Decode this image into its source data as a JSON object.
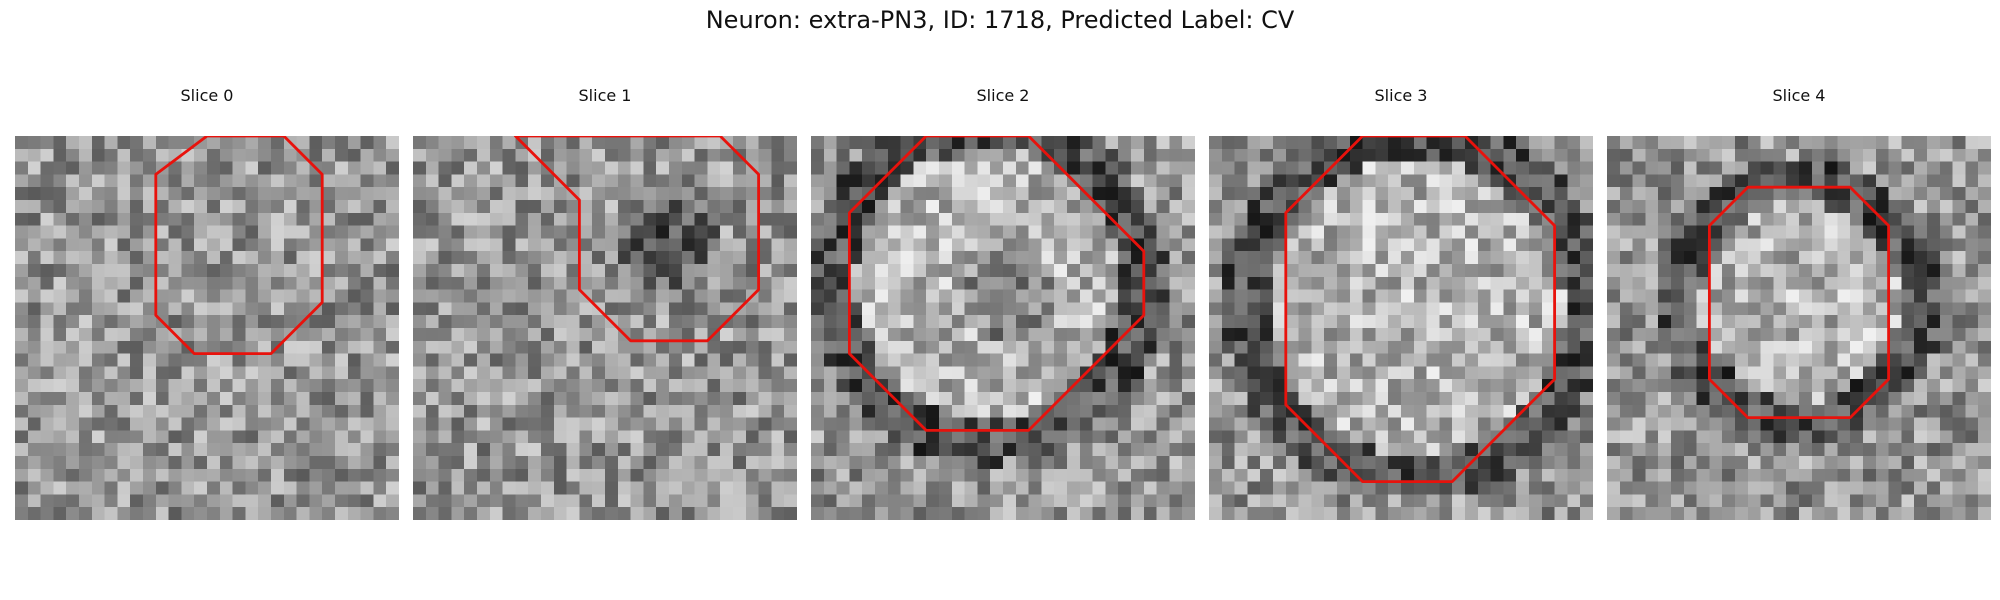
{
  "figure": {
    "title": "Neuron: extra-PN3, ID: 1718, Predicted Label: CV",
    "panels": [
      {
        "label": "Slice 0",
        "seed": 11,
        "pattern": "noise",
        "contour": [
          [
            14.5,
            -0.5
          ],
          [
            20.5,
            -0.5
          ],
          [
            23.5,
            2.5
          ],
          [
            23.5,
            12.5
          ],
          [
            19.5,
            16.5
          ],
          [
            13.5,
            16.5
          ],
          [
            10.5,
            13.5
          ],
          [
            10.5,
            2.5
          ]
        ]
      },
      {
        "label": "Slice 1",
        "seed": 23,
        "pattern": "dark-center",
        "contour": [
          [
            7.5,
            -0.5
          ],
          [
            23.5,
            -0.5
          ],
          [
            26.5,
            2.5
          ],
          [
            26.5,
            11.5
          ],
          [
            22.5,
            15.5
          ],
          [
            16.5,
            15.5
          ],
          [
            12.5,
            11.5
          ],
          [
            12.5,
            4.5
          ],
          [
            8.5,
            0.5
          ]
        ]
      },
      {
        "label": "Slice 2",
        "seed": 37,
        "pattern": "ring-dark-center",
        "contour": [
          [
            8.5,
            -0.5
          ],
          [
            16.5,
            -0.5
          ],
          [
            25.5,
            8.5
          ],
          [
            25.5,
            13.5
          ],
          [
            16.5,
            22.5
          ],
          [
            8.5,
            22.5
          ],
          [
            2.5,
            16.5
          ],
          [
            2.5,
            5.5
          ]
        ]
      },
      {
        "label": "Slice 3",
        "seed": 53,
        "pattern": "ring",
        "contour": [
          [
            11.5,
            -0.5
          ],
          [
            19.5,
            -0.5
          ],
          [
            26.5,
            6.5
          ],
          [
            26.5,
            18.5
          ],
          [
            18.5,
            26.5
          ],
          [
            11.5,
            26.5
          ],
          [
            5.5,
            20.5
          ],
          [
            5.5,
            5.5
          ]
        ]
      },
      {
        "label": "Slice 4",
        "seed": 71,
        "pattern": "ring",
        "contour": [
          [
            10.5,
            3.5
          ],
          [
            18.5,
            3.5
          ],
          [
            21.5,
            6.5
          ],
          [
            21.5,
            18.5
          ],
          [
            18.5,
            21.5
          ],
          [
            10.5,
            21.5
          ],
          [
            7.5,
            18.5
          ],
          [
            7.5,
            6.5
          ]
        ]
      }
    ]
  }
}
